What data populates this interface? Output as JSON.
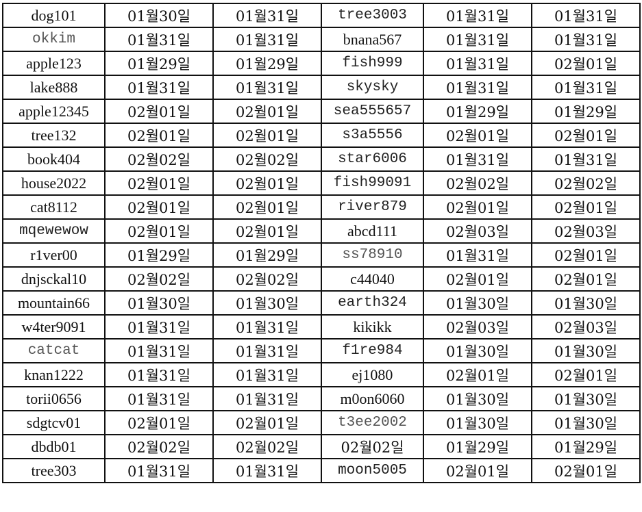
{
  "rows": [
    [
      "dog101",
      "01월30일",
      "01월31일",
      "tree3003",
      "01월31일",
      "01월31일"
    ],
    [
      "okkim",
      "01월31일",
      "01월31일",
      "bnana567",
      "01월31일",
      "01월31일"
    ],
    [
      "apple123",
      "01월29일",
      "01월29일",
      "fish999",
      "01월31일",
      "02월01일"
    ],
    [
      "lake888",
      "01월31일",
      "01월31일",
      "skysky",
      "01월31일",
      "01월31일"
    ],
    [
      "apple12345",
      "02월01일",
      "02월01일",
      "sea555657",
      "01월29일",
      "01월29일"
    ],
    [
      "tree132",
      "02월01일",
      "02월01일",
      "s3a5556",
      "02월01일",
      "02월01일"
    ],
    [
      "book404",
      "02월02일",
      "02월02일",
      "star6006",
      "01월31일",
      "01월31일"
    ],
    [
      "house2022",
      "02월01일",
      "02월01일",
      "fish99091",
      "02월02일",
      "02월02일"
    ],
    [
      "cat8112",
      "02월01일",
      "02월01일",
      "river879",
      "02월01일",
      "02월01일"
    ],
    [
      "mqewewow",
      "02월01일",
      "02월01일",
      "abcd111",
      "02월03일",
      "02월03일"
    ],
    [
      "r1ver00",
      "01월29일",
      "01월29일",
      "ss78910",
      "01월31일",
      "02월01일"
    ],
    [
      "dnjsckal10",
      "02월02일",
      "02월02일",
      "c44040",
      "02월01일",
      "02월01일"
    ],
    [
      "mountain66",
      "01월30일",
      "01월30일",
      "earth324",
      "01월30일",
      "01월30일"
    ],
    [
      "w4ter9091",
      "01월31일",
      "01월31일",
      "kikikk",
      "02월03일",
      "02월03일"
    ],
    [
      "catcat",
      "01월31일",
      "01월31일",
      "f1re984",
      "01월30일",
      "01월30일"
    ],
    [
      "knan1222",
      "01월31일",
      "01월31일",
      "ej1080",
      "02월01일",
      "02월01일"
    ],
    [
      "torii0656",
      "01월31일",
      "01월31일",
      "m0on6060",
      "01월30일",
      "01월30일"
    ],
    [
      "sdgtcv01",
      "02월01일",
      "02월01일",
      "t3ee2002",
      "01월30일",
      "01월30일"
    ],
    [
      "dbdb01",
      "02월02일",
      "02월02일",
      "02월02일",
      "01월29일",
      "01월29일"
    ],
    [
      "tree303",
      "01월31일",
      "01월31일",
      "moon5005",
      "02월01일",
      "02월01일"
    ]
  ]
}
